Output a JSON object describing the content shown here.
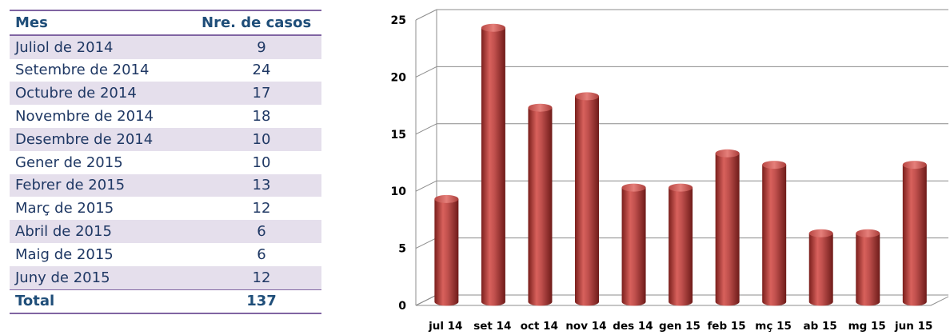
{
  "table": {
    "headers": [
      "Mes",
      "Nre. de casos"
    ],
    "rows": [
      [
        "Juliol de 2014",
        "9"
      ],
      [
        "Setembre de 2014",
        "24"
      ],
      [
        "Octubre de 2014",
        "17"
      ],
      [
        "Novembre de 2014",
        "18"
      ],
      [
        "Desembre de 2014",
        "10"
      ],
      [
        "Gener de 2015",
        "10"
      ],
      [
        "Febrer de 2015",
        "13"
      ],
      [
        "Març de 2015",
        "12"
      ],
      [
        "Abril de 2015",
        "6"
      ],
      [
        "Maig de 2015",
        "6"
      ],
      [
        "Juny de 2015",
        "12"
      ]
    ],
    "total": [
      "Total",
      "137"
    ]
  },
  "chart_data": {
    "type": "bar",
    "categories": [
      "jul 14",
      "set 14",
      "oct 14",
      "nov 14",
      "des 14",
      "gen 15",
      "feb 15",
      "mç 15",
      "ab 15",
      "mg 15",
      "jun 15"
    ],
    "values": [
      9,
      24,
      17,
      18,
      10,
      10,
      13,
      12,
      6,
      6,
      12
    ],
    "yticks": [
      "0",
      "5",
      "10",
      "15",
      "20",
      "25"
    ],
    "ylim": [
      0,
      25
    ],
    "grid": true,
    "legend": "none",
    "bar_color": "#c0504d",
    "title": "",
    "xlabel": "",
    "ylabel": ""
  }
}
